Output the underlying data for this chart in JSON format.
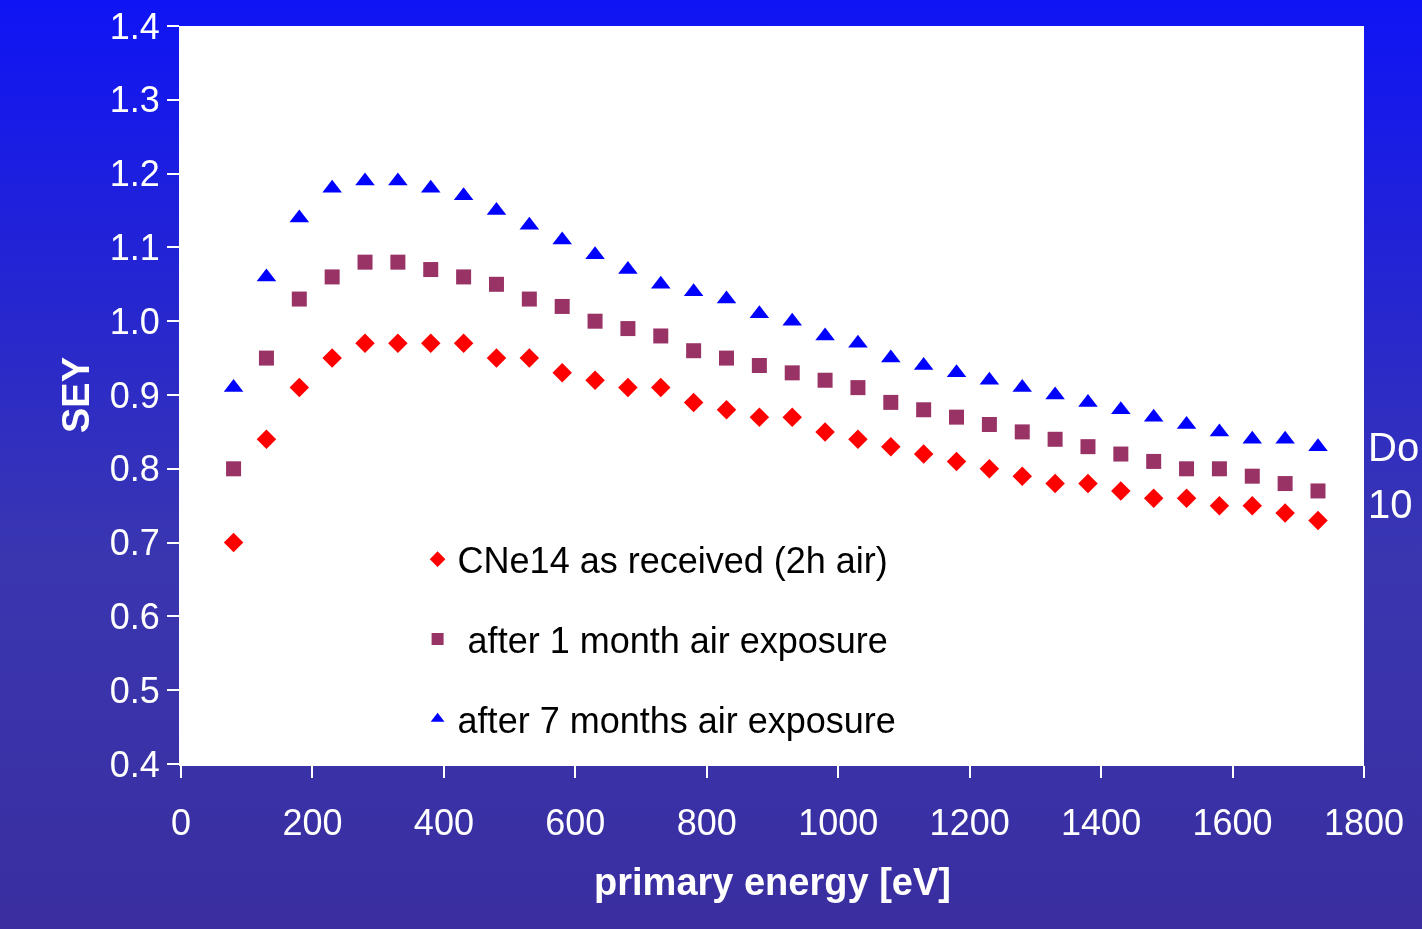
{
  "chart_data": {
    "type": "scatter",
    "xlabel": "primary energy [eV]",
    "ylabel": "SEY",
    "x": [
      80,
      130,
      180,
      230,
      280,
      330,
      380,
      430,
      480,
      530,
      580,
      630,
      680,
      730,
      780,
      830,
      880,
      930,
      980,
      1030,
      1080,
      1130,
      1180,
      1230,
      1280,
      1330,
      1380,
      1430,
      1480,
      1530,
      1580,
      1630,
      1680,
      1730
    ],
    "series": [
      {
        "name": "CNe14 as received (2h air)",
        "color": "#ff0000",
        "marker": "diamond",
        "values": [
          0.7,
          0.84,
          0.91,
          0.95,
          0.97,
          0.97,
          0.97,
          0.97,
          0.95,
          0.95,
          0.93,
          0.92,
          0.91,
          0.91,
          0.89,
          0.88,
          0.87,
          0.87,
          0.85,
          0.84,
          0.83,
          0.82,
          0.81,
          0.8,
          0.79,
          0.78,
          0.78,
          0.77,
          0.76,
          0.76,
          0.75,
          0.75,
          0.74,
          0.73
        ]
      },
      {
        "name": " after 1 month air exposure",
        "color": "#993366",
        "marker": "square",
        "values": [
          0.8,
          0.95,
          1.03,
          1.06,
          1.08,
          1.08,
          1.07,
          1.06,
          1.05,
          1.03,
          1.02,
          1.0,
          0.99,
          0.98,
          0.96,
          0.95,
          0.94,
          0.93,
          0.92,
          0.91,
          0.89,
          0.88,
          0.87,
          0.86,
          0.85,
          0.84,
          0.83,
          0.82,
          0.81,
          0.8,
          0.8,
          0.79,
          0.78,
          0.77
        ]
      },
      {
        "name": "after 7 months air exposure",
        "color": "#0000ff",
        "marker": "triangle",
        "values": [
          0.91,
          1.06,
          1.14,
          1.18,
          1.19,
          1.19,
          1.18,
          1.17,
          1.15,
          1.13,
          1.11,
          1.09,
          1.07,
          1.05,
          1.04,
          1.03,
          1.01,
          1.0,
          0.98,
          0.97,
          0.95,
          0.94,
          0.93,
          0.92,
          0.91,
          0.9,
          0.89,
          0.88,
          0.87,
          0.86,
          0.85,
          0.84,
          0.84,
          0.83
        ]
      }
    ],
    "xlim": [
      0,
      1800
    ],
    "xticks": [
      0,
      200,
      400,
      600,
      800,
      1000,
      1200,
      1400,
      1600,
      1800
    ],
    "ylim": [
      0.4,
      1.4
    ],
    "yticks": [
      {
        "value": 0.4,
        "label": "0.4"
      },
      {
        "value": 0.5,
        "label": "0.5"
      },
      {
        "value": 0.6,
        "label": "0.6"
      },
      {
        "value": 0.7,
        "label": "0.7"
      },
      {
        "value": 0.8,
        "label": "0.8"
      },
      {
        "value": 0.9,
        "label": "0.9"
      },
      {
        "value": 1.0,
        "label": "1.0"
      },
      {
        "value": 1.1,
        "label": "1.1"
      },
      {
        "value": 1.2,
        "label": "1.2"
      },
      {
        "value": 1.3,
        "label": "1.3"
      },
      {
        "value": 1.4,
        "label": "1.4"
      }
    ],
    "grid": false,
    "legend": "bottom",
    "annotations": [
      "Do",
      "10"
    ]
  }
}
